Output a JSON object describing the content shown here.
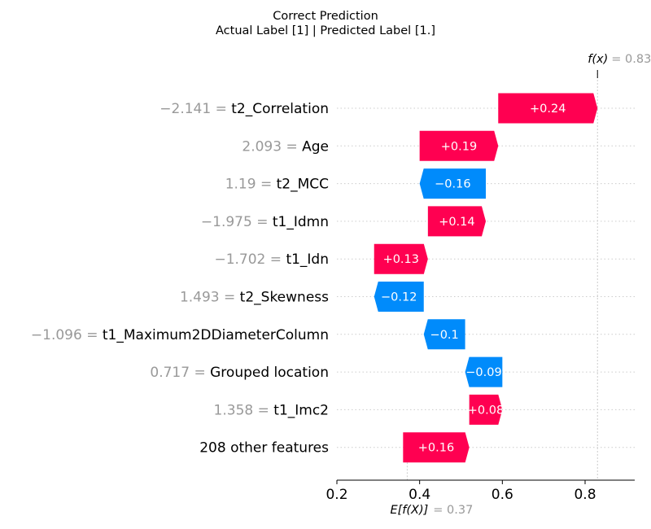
{
  "title": "Correct Prediction",
  "subtitle": "Actual Label [1] | Predicted Label [1.]",
  "colors": {
    "positive": "#ff0051",
    "negative": "#008bfb",
    "axis": "#000000",
    "grid": "#cccccc",
    "muted": "#999999"
  },
  "chart_data": {
    "type": "bar",
    "subtype": "shap-waterfall",
    "orientation": "horizontal",
    "title": "Correct Prediction",
    "subtitle": "Actual Label [1] | Predicted Label [1.]",
    "xlim": [
      0.2,
      0.92
    ],
    "xticks": [
      "0.2",
      "0.4",
      "0.6",
      "0.8"
    ],
    "xtick_values": [
      0.2,
      0.4,
      0.6,
      0.8
    ],
    "base_value": {
      "label": "E[f(X)]",
      "eq": "= 0.37",
      "value": 0.37
    },
    "output_value": {
      "label": "f(x)",
      "eq": "= 0.83",
      "value": 0.83
    },
    "features": [
      {
        "value": "−2.141",
        "name": "t2_Correlation",
        "shap": 0.24,
        "label": "+0.24"
      },
      {
        "value": "2.093",
        "name": "Age",
        "shap": 0.19,
        "label": "+0.19"
      },
      {
        "value": "1.19",
        "name": "t2_MCC",
        "shap": -0.16,
        "label": "−0.16"
      },
      {
        "value": "−1.975",
        "name": "t1_Idmn",
        "shap": 0.14,
        "label": "+0.14"
      },
      {
        "value": "−1.702",
        "name": "t1_Idn",
        "shap": 0.13,
        "label": "+0.13"
      },
      {
        "value": "1.493",
        "name": "t2_Skewness",
        "shap": -0.12,
        "label": "−0.12"
      },
      {
        "value": "−1.096",
        "name": "t1_Maximum2DDiameterColumn",
        "shap": -0.1,
        "label": "−0.1"
      },
      {
        "value": "0.717",
        "name": "Grouped location",
        "shap": -0.09,
        "label": "−0.09"
      },
      {
        "value": "1.358",
        "name": "t1_Imc2",
        "shap": 0.08,
        "label": "+0.08"
      },
      {
        "value": "",
        "name": "208 other features",
        "shap": 0.16,
        "label": "+0.16"
      }
    ]
  }
}
